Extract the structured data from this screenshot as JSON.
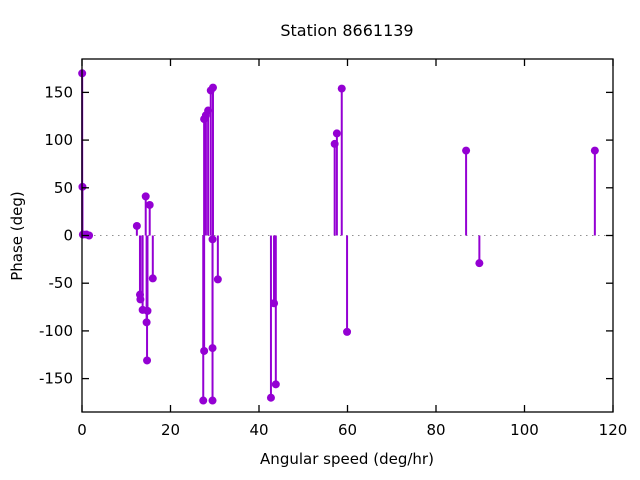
{
  "chart_data": {
    "type": "scatter",
    "style": "impulses+points",
    "title": "Station 8661139",
    "xlabel": "Angular speed (deg/hr)",
    "ylabel": "Phase (deg)",
    "xlim": [
      0,
      120
    ],
    "ylim": [
      -185,
      185
    ],
    "xticks": [
      0,
      20,
      40,
      60,
      80,
      100,
      120
    ],
    "yticks": [
      -150,
      -100,
      -50,
      0,
      50,
      100,
      150
    ],
    "zero_line": true,
    "grid": false,
    "legend": "none",
    "series_color": "#9400d3",
    "zero_line_color": "#909090",
    "points": [
      [
        0.04,
        170
      ],
      [
        0.1,
        51
      ],
      [
        0.2,
        1
      ],
      [
        1.0,
        1
      ],
      [
        1.6,
        0
      ],
      [
        12.4,
        10
      ],
      [
        13.1,
        -62
      ],
      [
        13.2,
        -67
      ],
      [
        13.7,
        -78
      ],
      [
        14.4,
        41
      ],
      [
        14.6,
        -91
      ],
      [
        14.7,
        -131
      ],
      [
        14.8,
        -79
      ],
      [
        15.3,
        32
      ],
      [
        16.0,
        -45
      ],
      [
        27.4,
        -173
      ],
      [
        27.6,
        122
      ],
      [
        27.6,
        -121
      ],
      [
        28.0,
        126
      ],
      [
        28.5,
        131
      ],
      [
        29.1,
        152
      ],
      [
        29.5,
        -118
      ],
      [
        29.5,
        -173
      ],
      [
        29.5,
        -4
      ],
      [
        29.6,
        155
      ],
      [
        30.7,
        -46
      ],
      [
        42.7,
        -170
      ],
      [
        43.4,
        -71
      ],
      [
        43.8,
        -156
      ],
      [
        57.1,
        96
      ],
      [
        57.6,
        107
      ],
      [
        58.7,
        154
      ],
      [
        59.9,
        -101
      ],
      [
        86.8,
        89
      ],
      [
        89.8,
        -29
      ],
      [
        115.9,
        89
      ]
    ]
  }
}
